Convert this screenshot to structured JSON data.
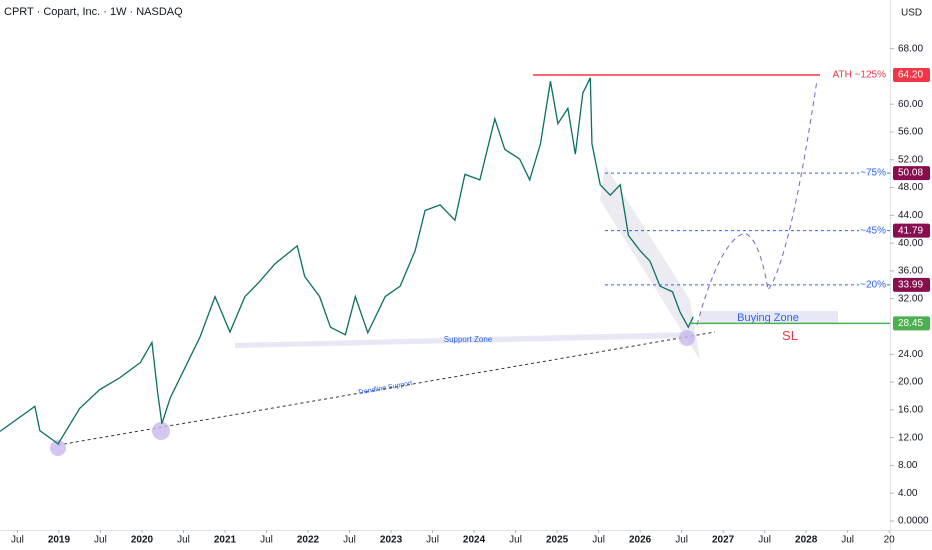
{
  "chart_data": {
    "type": "line",
    "title": "CPRT · Copart, Inc. · 1W · NASDAQ",
    "currency": "USD",
    "series": [
      {
        "name": "CPRT",
        "color": "#0a6f62",
        "x": [
          2018.29,
          2018.71,
          2018.77,
          2018.99,
          2019.25,
          2019.49,
          2019.73,
          2019.98,
          2020.12,
          2020.19,
          2020.24,
          2020.34,
          2020.52,
          2020.7,
          2020.88,
          2021.06,
          2021.24,
          2021.42,
          2021.6,
          2021.87,
          2021.96,
          2022.14,
          2022.27,
          2022.45,
          2022.57,
          2022.72,
          2022.93,
          2023.11,
          2023.29,
          2023.41,
          2023.59,
          2023.77,
          2023.89,
          2024.07,
          2024.25,
          2024.37,
          2024.55,
          2024.67,
          2024.8,
          2024.92,
          2025.01,
          2025.13,
          2025.22,
          2025.31,
          2025.4,
          2025.42,
          2025.52,
          2025.64,
          2025.76,
          2025.86,
          2026.0,
          2026.12,
          2026.24,
          2026.39,
          2026.48,
          2026.58,
          2026.64
        ],
        "values": [
          12.9,
          16.5,
          13,
          11.1,
          16.2,
          18.9,
          20.6,
          22.8,
          25.7,
          18.4,
          14,
          17.7,
          22.1,
          26.5,
          32.3,
          27.2,
          32.3,
          34.5,
          37,
          39.6,
          35.2,
          32.3,
          27.9,
          26.8,
          32.3,
          27.1,
          32.3,
          33.8,
          38.9,
          44.7,
          45.5,
          43.3,
          49.9,
          49.1,
          57.9,
          53.5,
          52.1,
          49.1,
          54.3,
          63.3,
          57.2,
          59.4,
          52.8,
          61.6,
          63.8,
          54.3,
          48.4,
          46.9,
          48.4,
          41.1,
          38.9,
          37.4,
          33.8,
          33,
          30.1,
          27.9,
          29.4
        ]
      }
    ],
    "levels": [
      {
        "value": 64.2,
        "name": "ATH ~125%",
        "value_label": "64.20",
        "color": "#f23645",
        "badge": "#f23645",
        "dashed": false
      },
      {
        "value": 50.08,
        "name": "~75%",
        "value_label": "50.08",
        "color": "#2962ff",
        "badge": "#880e4f",
        "dashed": true
      },
      {
        "value": 41.79,
        "name": "~45%",
        "value_label": "41.79",
        "color": "#2962ff",
        "badge": "#880e4f",
        "dashed": true
      },
      {
        "value": 33.99,
        "name": "~20%",
        "value_label": "33.99",
        "color": "#2962ff",
        "badge": "#880e4f",
        "dashed": true
      },
      {
        "value": 28.45,
        "name": "SL",
        "value_label": "28.45",
        "color": "#f23645",
        "badge": "#4caf50",
        "dashed": false
      }
    ],
    "annotations": {
      "buying_zone": "Buying Zone",
      "support_zone": "Support Zone",
      "trendline": "Trendline Support"
    },
    "xlim": [
      2018.29,
      2029.01
    ],
    "xticks": [
      {
        "value": 2018.5,
        "label": "Jul"
      },
      2019,
      {
        "value": 2019.5,
        "label": "Jul"
      },
      2020,
      {
        "value": 2020.5,
        "label": "Jul"
      },
      2021,
      {
        "value": 2021.5,
        "label": "Jul"
      },
      2022,
      {
        "value": 2022.5,
        "label": "Jul"
      },
      2023,
      {
        "value": 2023.5,
        "label": "Jul"
      },
      2024,
      {
        "value": 2024.5,
        "label": "Jul"
      },
      2025,
      {
        "value": 2025.5,
        "label": "Jul"
      },
      2026,
      {
        "value": 2026.5,
        "label": "Jul"
      },
      2027,
      {
        "value": 2027.5,
        "label": "Jul"
      },
      2028,
      {
        "value": 2028.5,
        "label": "Jul"
      },
      {
        "value": 2029,
        "label": "20"
      }
    ],
    "ylim": [
      -1.3,
      75
    ],
    "yticks": [
      {
        "value": 0,
        "label": "0.0000"
      },
      {
        "value": 4,
        "label": "4.00"
      },
      {
        "value": 8,
        "label": "8.00"
      },
      {
        "value": 12,
        "label": "12.00"
      },
      {
        "value": 16,
        "label": "16.00"
      },
      {
        "value": 20,
        "label": "20.00"
      },
      {
        "value": 24,
        "label": "24.00"
      },
      {
        "value": 32,
        "label": "32.00"
      },
      {
        "value": 36,
        "label": "36.00"
      },
      {
        "value": 40,
        "label": "40.00"
      },
      {
        "value": 44,
        "label": "44.00"
      },
      {
        "value": 48,
        "label": "48.00"
      },
      {
        "value": 52,
        "label": "52.00"
      },
      {
        "value": 56,
        "label": "56.00"
      },
      {
        "value": 60,
        "label": "60.00"
      },
      {
        "value": 68,
        "label": "68.00"
      }
    ]
  }
}
